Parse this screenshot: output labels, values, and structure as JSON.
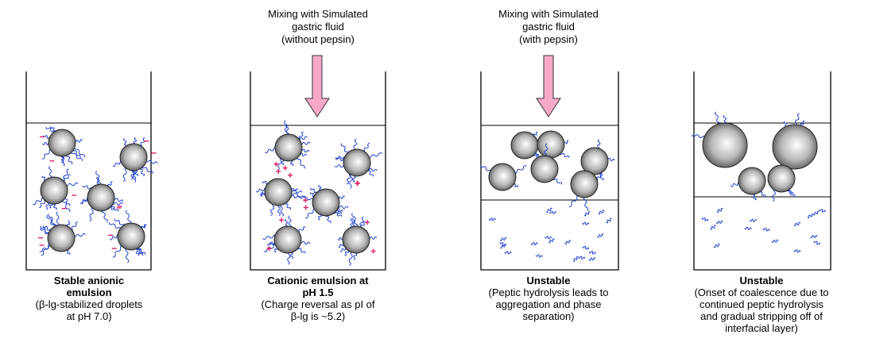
{
  "panels": [
    {
      "title": [
        "Stable anionic",
        "emulsion"
      ],
      "description": [
        "(β-lg-stabilized droplets",
        "at pH 7.0)"
      ]
    },
    {
      "arrow_label": [
        "Mixing with Simulated",
        "gastric fluid",
        "(without pepsin)"
      ],
      "title": [
        "Cationic emulsion at",
        "pH 1.5"
      ],
      "description": [
        "(Charge reversal as pI of",
        "β-lg is ~5.2)"
      ]
    },
    {
      "arrow_label": [
        "Mixing with Simulated",
        "gastric fluid",
        "(with pepsin)"
      ],
      "title": [
        "Unstable"
      ],
      "description": [
        "(Peptic hydrolysis leads to",
        "aggregation and phase",
        "separation)"
      ]
    },
    {
      "title": [
        "Unstable"
      ],
      "description": [
        "(Onset of coalescence due to",
        "continued peptic hydrolysis",
        "and gradual stripping off of",
        "interfacial layer)"
      ]
    }
  ]
}
